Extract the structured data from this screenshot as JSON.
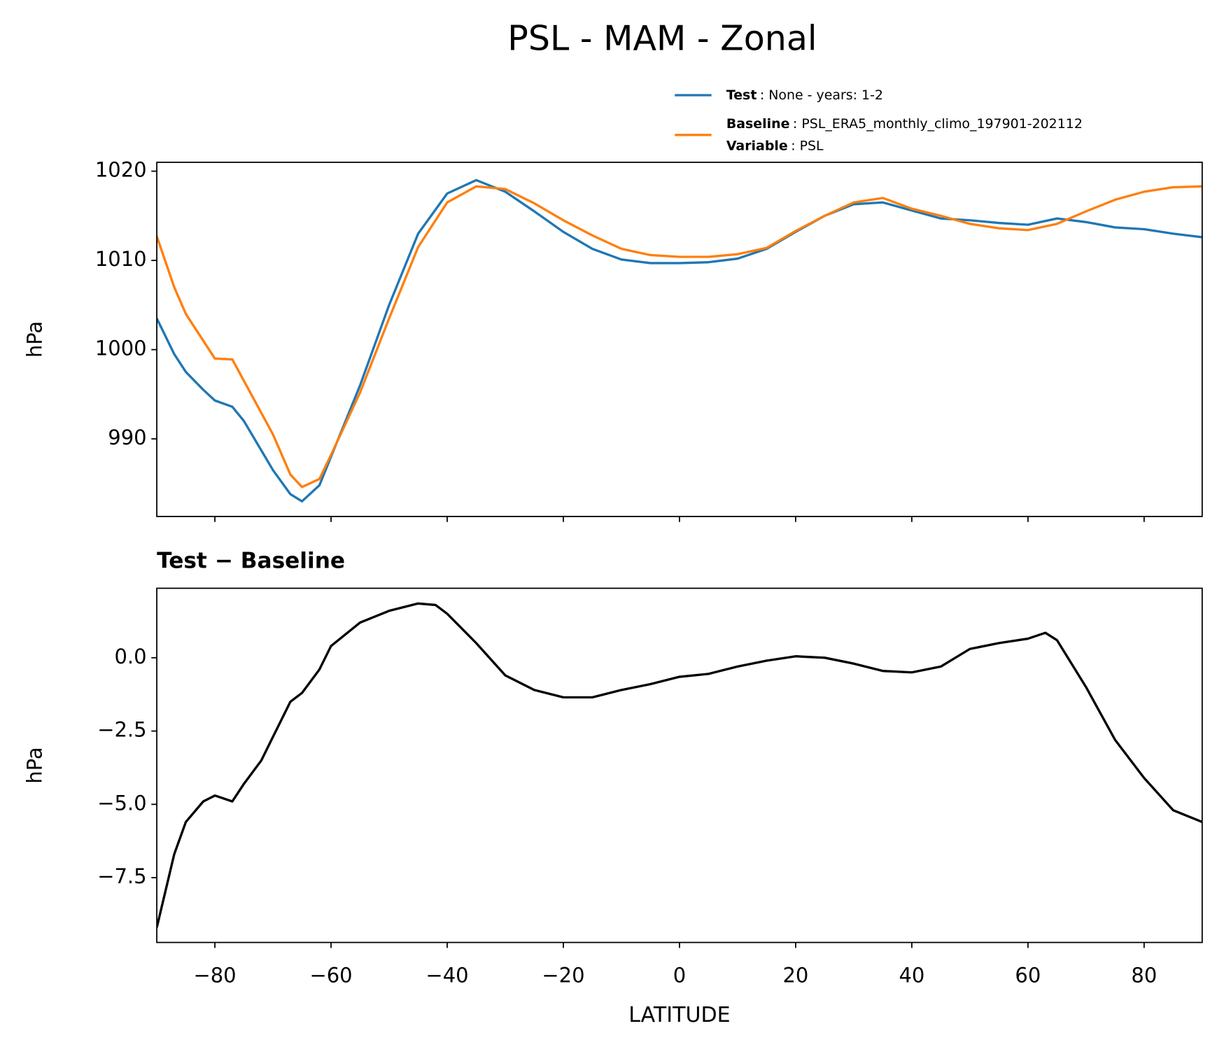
{
  "title": "PSL - MAM - Zonal",
  "chart_data": [
    {
      "type": "line",
      "ylabel": "hPa",
      "x": [
        -90,
        -87,
        -85,
        -82,
        -80,
        -77,
        -75,
        -70,
        -67,
        -65,
        -62,
        -60,
        -55,
        -50,
        -45,
        -40,
        -35,
        -30,
        -25,
        -20,
        -15,
        -10,
        -5,
        0,
        5,
        10,
        15,
        20,
        25,
        30,
        35,
        40,
        45,
        50,
        55,
        60,
        65,
        70,
        75,
        80,
        85,
        90
      ],
      "series": [
        {
          "name": "Test",
          "description": ": None - years: 1-2",
          "color": "#1f77b4",
          "values": [
            1003.5,
            999.5,
            997.5,
            995.5,
            994.3,
            993.6,
            992,
            986.5,
            983.8,
            983.0,
            984.8,
            988,
            996,
            1005,
            1013,
            1017.5,
            1019.0,
            1017.7,
            1015.5,
            1013.2,
            1011.3,
            1010.1,
            1009.7,
            1009.7,
            1009.8,
            1010.2,
            1011.3,
            1013.2,
            1015,
            1016.3,
            1016.5,
            1015.6,
            1014.7,
            1014.5,
            1014.2,
            1014.0,
            1014.7,
            1014.3,
            1013.7,
            1013.5,
            1013.0,
            1012.6
          ]
        },
        {
          "name": "Baseline",
          "description": ": PSL_ERA5_monthly_climo_197901-202112",
          "color": "#ff7f0e",
          "values": [
            1012.7,
            1007.0,
            1004.0,
            1001.0,
            999.0,
            998.9,
            996.5,
            990.5,
            986.0,
            984.6,
            985.5,
            988.2,
            995.2,
            1003.5,
            1011.5,
            1016.5,
            1018.3,
            1018.0,
            1016.4,
            1014.5,
            1012.8,
            1011.3,
            1010.6,
            1010.4,
            1010.4,
            1010.7,
            1011.4,
            1013.3,
            1015.0,
            1016.5,
            1017.0,
            1015.8,
            1015.0,
            1014.1,
            1013.6,
            1013.4,
            1014.1,
            1015.5,
            1016.8,
            1017.7,
            1018.2,
            1018.3
          ]
        }
      ],
      "legend_extra": {
        "name": "Variable",
        "description": ": PSL"
      },
      "xlim": [
        -90,
        90
      ],
      "xticks": [
        -80,
        -60,
        -40,
        -20,
        0,
        20,
        40,
        60,
        80
      ],
      "show_xticklabels": false,
      "ylim": [
        981.3,
        1021.0
      ],
      "yticks": [
        990,
        1000,
        1010,
        1020
      ],
      "grid": false
    },
    {
      "type": "line",
      "title": "Test − Baseline",
      "ylabel": "hPa",
      "xlabel": "LATITUDE",
      "x": [
        -90,
        -87,
        -85,
        -82,
        -80,
        -77,
        -75,
        -72,
        -70,
        -67,
        -65,
        -62,
        -60,
        -55,
        -50,
        -45,
        -42,
        -40,
        -35,
        -30,
        -25,
        -20,
        -15,
        -10,
        -5,
        0,
        5,
        10,
        15,
        20,
        25,
        30,
        35,
        40,
        45,
        50,
        55,
        60,
        63,
        65,
        70,
        75,
        80,
        85,
        90
      ],
      "series": [
        {
          "color": "#000000",
          "values": [
            -9.2,
            -6.7,
            -5.6,
            -4.9,
            -4.7,
            -4.9,
            -4.3,
            -3.5,
            -2.7,
            -1.5,
            -1.2,
            -0.4,
            0.4,
            1.2,
            1.6,
            1.85,
            1.8,
            1.5,
            0.5,
            -0.6,
            -1.1,
            -1.35,
            -1.35,
            -1.1,
            -0.9,
            -0.65,
            -0.55,
            -0.3,
            -0.1,
            0.05,
            0.0,
            -0.2,
            -0.45,
            -0.5,
            -0.3,
            0.3,
            0.5,
            0.65,
            0.85,
            0.6,
            -1.0,
            -2.8,
            -4.1,
            -5.2,
            -5.6
          ]
        }
      ],
      "xlim": [
        -90,
        90
      ],
      "xticks": [
        {
          "value": -80,
          "label": "−80"
        },
        {
          "value": -60,
          "label": "−60"
        },
        {
          "value": -40,
          "label": "−40"
        },
        {
          "value": -20,
          "label": "−20"
        },
        0,
        20,
        40,
        60,
        80
      ],
      "show_xticklabels": true,
      "ylim": [
        -9.71,
        2.37
      ],
      "yticks": [
        {
          "value": -7.5,
          "label": "−7.5"
        },
        {
          "value": -5,
          "label": "−5.0"
        },
        {
          "value": -2.5,
          "label": "−2.5"
        },
        {
          "value": 0,
          "label": "0.0"
        }
      ],
      "grid": false
    }
  ]
}
